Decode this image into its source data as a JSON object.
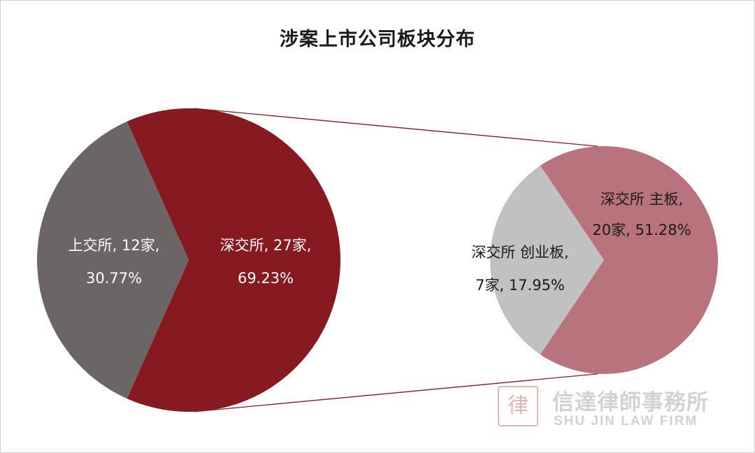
{
  "chart_data": {
    "type": "pie",
    "subtype": "pie-of-pie",
    "title": "涉案上市公司板块分布",
    "main": {
      "slices": [
        {
          "name": "上交所",
          "count": 12,
          "percent": 30.77,
          "label_line1": "上交所, 12家,",
          "label_line2": "30.77%",
          "color": "#6b6565",
          "label_color": "#ffffff"
        },
        {
          "name": "深交所",
          "count": 27,
          "percent": 69.23,
          "label_line1": "深交所, 27家,",
          "label_line2": "69.23%",
          "color": "#871920",
          "label_color": "#ffffff"
        }
      ]
    },
    "breakdown_of": "深交所",
    "secondary": {
      "slices": [
        {
          "name": "深交所 创业板",
          "count": 7,
          "percent": 17.95,
          "label_line1": "深交所 创业板,",
          "label_line2": "7家, 17.95%",
          "color": "#c1c1c1",
          "label_color": "#1a1a1a"
        },
        {
          "name": "深交所 主板",
          "count": 20,
          "percent": 51.28,
          "label_line1": "深交所 主板,",
          "label_line2": "20家, 51.28%",
          "color": "#b8737d",
          "label_color": "#1a1a1a"
        }
      ]
    },
    "connector_color": "#871920"
  },
  "watermark": {
    "seal_char": "律",
    "firm_name_cn": "信達律師事務所",
    "firm_name_en": "SHU JIN LAW FIRM"
  }
}
